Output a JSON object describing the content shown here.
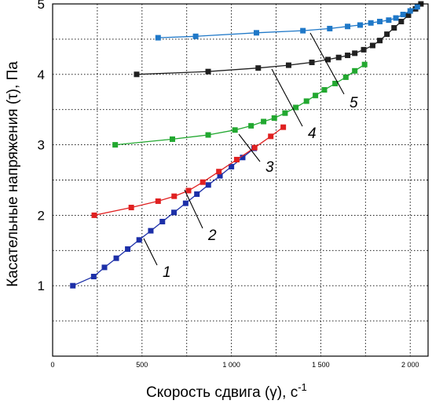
{
  "chart_data": {
    "type": "line",
    "xlabel": "Скорость сдвига (γ), с",
    "xlabel_sup": "-1",
    "ylabel": "Касательные напряжения (τ), Па",
    "xlim": [
      0,
      2100
    ],
    "ylim": [
      0,
      5
    ],
    "x_ticks": [
      0,
      500,
      1000,
      1500,
      2000
    ],
    "x_tick_labels": [
      "0",
      "500",
      "1 000",
      "1 500",
      "2 000"
    ],
    "y_ticks": [
      1,
      2,
      3,
      4,
      5
    ],
    "y_tick_labels": [
      "1",
      "2",
      "3",
      "4",
      "5"
    ],
    "grid": "dotted",
    "series": [
      {
        "name": "1",
        "color": "#1c2fa8",
        "x": [
          113,
          230,
          290,
          356,
          420,
          484,
          549,
          614,
          679,
          744,
          807,
          871,
          936,
          1000,
          1063,
          1127
        ],
        "y": [
          1.0,
          1.13,
          1.26,
          1.39,
          1.52,
          1.65,
          1.78,
          1.91,
          2.04,
          2.17,
          2.3,
          2.43,
          2.56,
          2.69,
          2.82,
          2.95
        ]
      },
      {
        "name": "2",
        "color": "#e02020",
        "x": [
          233,
          440,
          590,
          680,
          760,
          840,
          930,
          1030,
          1130,
          1220,
          1290
        ],
        "y": [
          2.0,
          2.11,
          2.2,
          2.27,
          2.35,
          2.47,
          2.62,
          2.79,
          2.96,
          3.12,
          3.25
        ]
      },
      {
        "name": "3",
        "color": "#22a830",
        "x": [
          350,
          670,
          870,
          1020,
          1110,
          1180,
          1240,
          1300,
          1360,
          1420,
          1470,
          1520,
          1580,
          1640,
          1690,
          1745
        ],
        "y": [
          3.0,
          3.08,
          3.14,
          3.21,
          3.27,
          3.33,
          3.38,
          3.45,
          3.53,
          3.62,
          3.7,
          3.78,
          3.87,
          3.96,
          4.05,
          4.14
        ]
      },
      {
        "name": "4",
        "color": "#202020",
        "x": [
          470,
          870,
          1150,
          1320,
          1450,
          1540,
          1600,
          1650,
          1690,
          1740,
          1790,
          1830,
          1870,
          1910,
          1950,
          1990,
          2030,
          2060
        ],
        "y": [
          4.0,
          4.04,
          4.09,
          4.13,
          4.17,
          4.21,
          4.24,
          4.27,
          4.3,
          4.35,
          4.41,
          4.48,
          4.57,
          4.66,
          4.75,
          4.84,
          4.93,
          5.0
        ]
      },
      {
        "name": "5",
        "color": "#1f78c8",
        "x": [
          590,
          800,
          1140,
          1400,
          1550,
          1650,
          1720,
          1780,
          1830,
          1880,
          1920,
          1960,
          2000,
          2040
        ],
        "y": [
          4.52,
          4.54,
          4.59,
          4.62,
          4.65,
          4.68,
          4.7,
          4.73,
          4.75,
          4.77,
          4.8,
          4.85,
          4.9,
          4.96
        ]
      }
    ],
    "curve_labels": [
      "1",
      "2",
      "3",
      "4",
      "5"
    ]
  }
}
